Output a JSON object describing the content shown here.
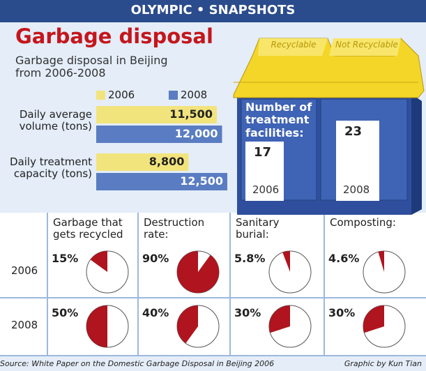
{
  "header": "OLYMPIC • SNAPSHOTS",
  "source": "Source: White Paper on the Domestic Garbage Disposal in Beijing 2006",
  "credit": "Graphic by Kun Tian",
  "bin_labels": [
    "Recyclable",
    "Not Recyclable"
  ],
  "chart_data": [
    {
      "type": "bar",
      "orientation": "horizontal",
      "title": "Garbage disposal",
      "subtitle": "Garbage disposal in Beijing from 2006-2008",
      "categories": [
        "Daily average volume (tons)",
        "Daily treatment capacity (tons)"
      ],
      "series": [
        {
          "name": "2006",
          "color": "#f2e47c",
          "values": [
            11500,
            8800
          ],
          "value_labels": [
            "11,500",
            "8,800"
          ]
        },
        {
          "name": "2008",
          "color": "#5a7cc2",
          "values": [
            12000,
            12500
          ],
          "value_labels": [
            "12,000",
            "12,500"
          ]
        }
      ]
    },
    {
      "type": "bar",
      "title": "Number of treatment facilities:",
      "categories": [
        "2006",
        "2008"
      ],
      "values": [
        17,
        23
      ],
      "color": "#ffffff"
    },
    {
      "type": "pie",
      "categories": [
        "2006",
        "2008"
      ],
      "color": "#b0141e",
      "series": [
        {
          "name": "Garbage that gets recycled",
          "values": [
            15,
            50
          ],
          "value_labels": [
            "15%",
            "50%"
          ]
        },
        {
          "name": "Destruction rate:",
          "values": [
            90,
            40
          ],
          "value_labels": [
            "90%",
            "40%"
          ]
        },
        {
          "name": "Sanitary burial:",
          "values": [
            5.8,
            30
          ],
          "value_labels": [
            "5.8%",
            "30%"
          ]
        },
        {
          "name": "Composting:",
          "values": [
            4.6,
            30
          ],
          "value_labels": [
            "4.6%",
            "30%"
          ]
        }
      ]
    }
  ]
}
